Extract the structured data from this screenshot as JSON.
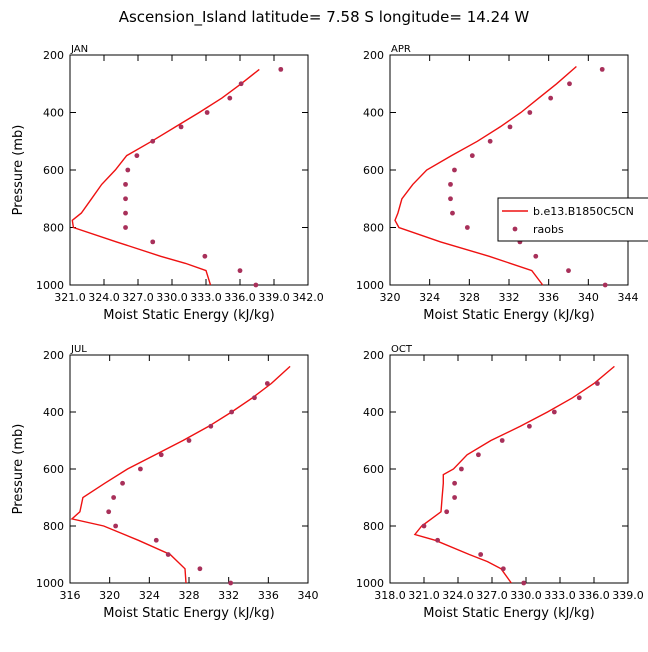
{
  "title": "Ascension_Island  latitude= 7.58 S longitude= 14.24 W",
  "legend": {
    "model_label": "b.e13.B1850C5CN",
    "obs_label": "raobs"
  },
  "colors": {
    "model_line": "#ee1111",
    "obs_marker": "#a8305a",
    "axis": "#000000"
  },
  "chart_data": [
    {
      "type": "line",
      "month": "JAN",
      "xlabel": "Moist Static Energy (kJ/kg)",
      "ylabel": "Pressure (mb)",
      "xlim": [
        321.0,
        342.0
      ],
      "ylim": [
        1000,
        200
      ],
      "xticks": [
        321.0,
        324.0,
        327.0,
        330.0,
        333.0,
        336.0,
        339.0,
        342.0
      ],
      "xtick_labels": [
        "321.0",
        "324.0",
        "327.0",
        "330.0",
        "333.0",
        "336.0",
        "339.0",
        "342.0"
      ],
      "yticks": [
        200,
        400,
        600,
        800,
        1000
      ],
      "ytick_labels": [
        "200",
        "400",
        "600",
        "800",
        "1000"
      ],
      "series": [
        {
          "name": "b.e13.B1850C5CN",
          "style": "line",
          "pressure": [
            250,
            300,
            350,
            400,
            450,
            500,
            550,
            600,
            650,
            700,
            750,
            775,
            800,
            850,
            900,
            925,
            950,
            1000
          ],
          "values": [
            337.7,
            336.1,
            334.4,
            332.4,
            330.3,
            328.2,
            326.0,
            325.0,
            323.8,
            322.9,
            322.0,
            321.2,
            321.3,
            325.1,
            329.0,
            331.2,
            333.0,
            333.4
          ]
        },
        {
          "name": "raobs",
          "style": "marker",
          "pressure": [
            250,
            300,
            350,
            400,
            450,
            500,
            550,
            600,
            650,
            700,
            750,
            800,
            850,
            900,
            950,
            1000
          ],
          "values": [
            339.6,
            336.1,
            335.1,
            333.1,
            330.8,
            328.3,
            326.9,
            326.1,
            325.9,
            325.9,
            325.9,
            325.9,
            328.3,
            332.9,
            336.0,
            337.4
          ]
        }
      ]
    },
    {
      "type": "line",
      "month": "APR",
      "xlabel": "Moist Static Energy (kJ/kg)",
      "ylabel": "Pressure (mb)",
      "xlim": [
        320,
        344
      ],
      "ylim": [
        1000,
        200
      ],
      "xticks": [
        320,
        324,
        328,
        332,
        336,
        340,
        344
      ],
      "xtick_labels": [
        "320",
        "324",
        "328",
        "332",
        "336",
        "340",
        "344"
      ],
      "yticks": [
        200,
        400,
        600,
        800,
        1000
      ],
      "ytick_labels": [
        "200",
        "400",
        "600",
        "800",
        "1000"
      ],
      "series": [
        {
          "name": "b.e13.B1850C5CN",
          "style": "line",
          "pressure": [
            240,
            300,
            350,
            400,
            450,
            500,
            550,
            600,
            650,
            700,
            750,
            775,
            800,
            850,
            900,
            950,
            1000
          ],
          "values": [
            338.8,
            336.8,
            335.0,
            333.2,
            331.1,
            328.8,
            326.2,
            323.7,
            322.3,
            321.2,
            320.8,
            320.5,
            320.9,
            325.1,
            330.0,
            334.3,
            335.4
          ]
        },
        {
          "name": "raobs",
          "style": "marker",
          "pressure": [
            250,
            300,
            350,
            400,
            450,
            500,
            550,
            600,
            650,
            700,
            750,
            800,
            850,
            900,
            950,
            1000
          ],
          "values": [
            341.4,
            338.1,
            336.2,
            334.1,
            332.1,
            330.1,
            328.3,
            326.5,
            326.1,
            326.1,
            326.3,
            327.8,
            333.1,
            334.7,
            338.0,
            341.7
          ]
        }
      ]
    },
    {
      "type": "line",
      "month": "JUL",
      "xlabel": "Moist Static Energy (kJ/kg)",
      "ylabel": "Pressure (mb)",
      "xlim": [
        316,
        340
      ],
      "ylim": [
        1000,
        200
      ],
      "xticks": [
        316,
        320,
        324,
        328,
        332,
        336,
        340
      ],
      "xtick_labels": [
        "316",
        "320",
        "324",
        "328",
        "332",
        "336",
        "340"
      ],
      "yticks": [
        200,
        400,
        600,
        800,
        1000
      ],
      "ytick_labels": [
        "200",
        "400",
        "600",
        "800",
        "1000"
      ],
      "series": [
        {
          "name": "b.e13.B1850C5CN",
          "style": "line",
          "pressure": [
            240,
            300,
            350,
            400,
            450,
            500,
            550,
            600,
            650,
            700,
            750,
            775,
            800,
            850,
            900,
            950,
            1000
          ],
          "values": [
            338.2,
            336.3,
            334.4,
            332.3,
            330.0,
            327.4,
            324.6,
            321.8,
            319.5,
            317.3,
            317.0,
            316.2,
            319.4,
            322.9,
            326.1,
            327.6,
            327.7
          ]
        },
        {
          "name": "raobs",
          "style": "marker",
          "pressure": [
            300,
            350,
            400,
            450,
            500,
            550,
            600,
            650,
            700,
            750,
            800,
            850,
            900,
            950,
            1000
          ],
          "values": [
            335.9,
            334.6,
            332.3,
            330.2,
            328.0,
            325.2,
            323.1,
            321.3,
            320.4,
            319.9,
            320.6,
            324.7,
            325.9,
            329.1,
            332.2
          ]
        }
      ]
    },
    {
      "type": "line",
      "month": "OCT",
      "xlabel": "Moist Static Energy (kJ/kg)",
      "ylabel": "Pressure (mb)",
      "xlim": [
        318.0,
        339.0
      ],
      "ylim": [
        1000,
        200
      ],
      "xticks": [
        318.0,
        321.0,
        324.0,
        327.0,
        330.0,
        333.0,
        336.0,
        339.0
      ],
      "xtick_labels": [
        "318.0",
        "321.0",
        "324.0",
        "327.0",
        "330.0",
        "333.0",
        "336.0",
        "339.0"
      ],
      "yticks": [
        200,
        400,
        600,
        800,
        1000
      ],
      "ytick_labels": [
        "200",
        "400",
        "600",
        "800",
        "1000"
      ],
      "series": [
        {
          "name": "b.e13.B1850C5CN",
          "style": "line",
          "pressure": [
            240,
            300,
            350,
            400,
            450,
            500,
            550,
            600,
            620,
            650,
            700,
            750,
            800,
            830,
            850,
            900,
            925,
            950,
            1000
          ],
          "values": [
            337.8,
            336.0,
            334.1,
            331.9,
            329.5,
            326.9,
            324.8,
            323.6,
            322.7,
            322.7,
            322.6,
            322.5,
            320.8,
            320.2,
            322.0,
            325.0,
            326.6,
            327.8,
            328.7
          ]
        },
        {
          "name": "raobs",
          "style": "marker",
          "pressure": [
            300,
            350,
            400,
            450,
            500,
            550,
            600,
            650,
            700,
            750,
            800,
            850,
            900,
            950,
            1000
          ],
          "values": [
            336.3,
            334.7,
            332.5,
            330.3,
            327.9,
            325.8,
            324.3,
            323.7,
            323.7,
            323.0,
            321.0,
            322.2,
            326.0,
            328.0,
            329.8
          ]
        }
      ]
    }
  ]
}
